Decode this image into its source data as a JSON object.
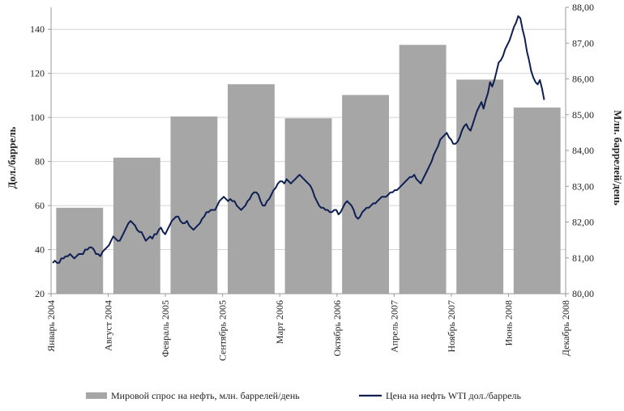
{
  "chart_data": {
    "type": "bar+line",
    "title": "",
    "y_left": {
      "label": "Дол./баррель",
      "ticks": [
        "20",
        "40",
        "60",
        "80",
        "100",
        "120",
        "140"
      ],
      "range": [
        20,
        150
      ]
    },
    "y_right": {
      "label": "Млн. баррелей/день",
      "ticks": [
        "80,00",
        "81,00",
        "82,00",
        "83,00",
        "84,00",
        "85,00",
        "86,00",
        "87,00",
        "88,00"
      ],
      "range": [
        80,
        88
      ]
    },
    "x_ticks": [
      "Январь 2004",
      "Август 2004",
      "Февраль 2005",
      "Сентябрь 2005",
      "Март 2006",
      "Октябрь 2006",
      "Апрель 2007",
      "Ноябрь 2007",
      "Июнь 2008",
      "Декабрь 2008"
    ],
    "grid": "horizontal",
    "legend_position": "bottom",
    "bars": {
      "name": "Мировой спрос на нефть, млн. баррелей/день",
      "axis": "right",
      "color": "#a6a6a6",
      "values": [
        82.4,
        83.8,
        84.95,
        85.85,
        84.9,
        85.55,
        86.95,
        85.98,
        85.2
      ]
    },
    "line": {
      "name": "Цена на нефть WTI дол./баррель",
      "axis": "left",
      "color": "#0e1f52",
      "values": [
        34,
        35,
        34,
        34,
        36,
        36,
        37,
        37,
        38,
        37,
        36,
        37,
        38,
        38,
        38,
        40,
        40,
        41,
        41,
        40,
        38,
        38,
        37,
        39,
        40,
        41,
        42,
        44,
        46,
        45,
        44,
        44,
        46,
        48,
        50,
        52,
        53,
        52,
        51,
        49,
        48,
        48,
        46,
        44,
        45,
        46,
        45,
        47,
        47,
        49,
        50,
        48,
        47,
        49,
        51,
        53,
        54,
        55,
        55,
        53,
        52,
        52,
        53,
        51,
        50,
        49,
        50,
        51,
        52,
        54,
        55,
        57,
        57,
        58,
        58,
        58,
        60,
        62,
        63,
        64,
        63,
        62,
        63,
        62,
        62,
        60,
        59,
        58,
        59,
        60,
        62,
        63,
        65,
        66,
        66,
        65,
        62,
        60,
        60,
        62,
        63,
        65,
        67,
        68,
        70,
        71,
        71,
        70,
        72,
        71,
        70,
        71,
        72,
        73,
        74,
        73,
        72,
        71,
        70,
        69,
        67,
        64,
        62,
        60,
        59,
        59,
        58,
        58,
        57,
        57,
        58,
        58,
        56,
        57,
        59,
        61,
        62,
        61,
        60,
        58,
        55,
        54,
        55,
        57,
        58,
        59,
        59,
        60,
        61,
        61,
        62,
        63,
        64,
        64,
        64,
        65,
        66,
        66,
        67,
        67,
        68,
        69,
        70,
        71,
        72,
        73,
        73,
        74,
        72,
        71,
        70,
        72,
        74,
        76,
        78,
        80,
        83,
        85,
        87,
        90,
        91,
        92,
        93,
        91,
        90,
        88,
        88,
        89,
        91,
        94,
        96,
        97,
        95,
        94,
        97,
        100,
        103,
        105,
        107,
        104,
        108,
        111,
        116,
        114,
        117,
        121,
        125,
        126,
        128,
        131,
        133,
        135,
        138,
        141,
        143,
        146,
        145,
        140,
        136,
        130,
        126,
        121,
        118,
        116,
        115,
        117,
        113,
        108
      ]
    }
  },
  "legend": {
    "bar_label": "Мировой спрос на нефть, млн. баррелей/день",
    "line_label": "Цена на нефть WTI дол./баррель"
  }
}
